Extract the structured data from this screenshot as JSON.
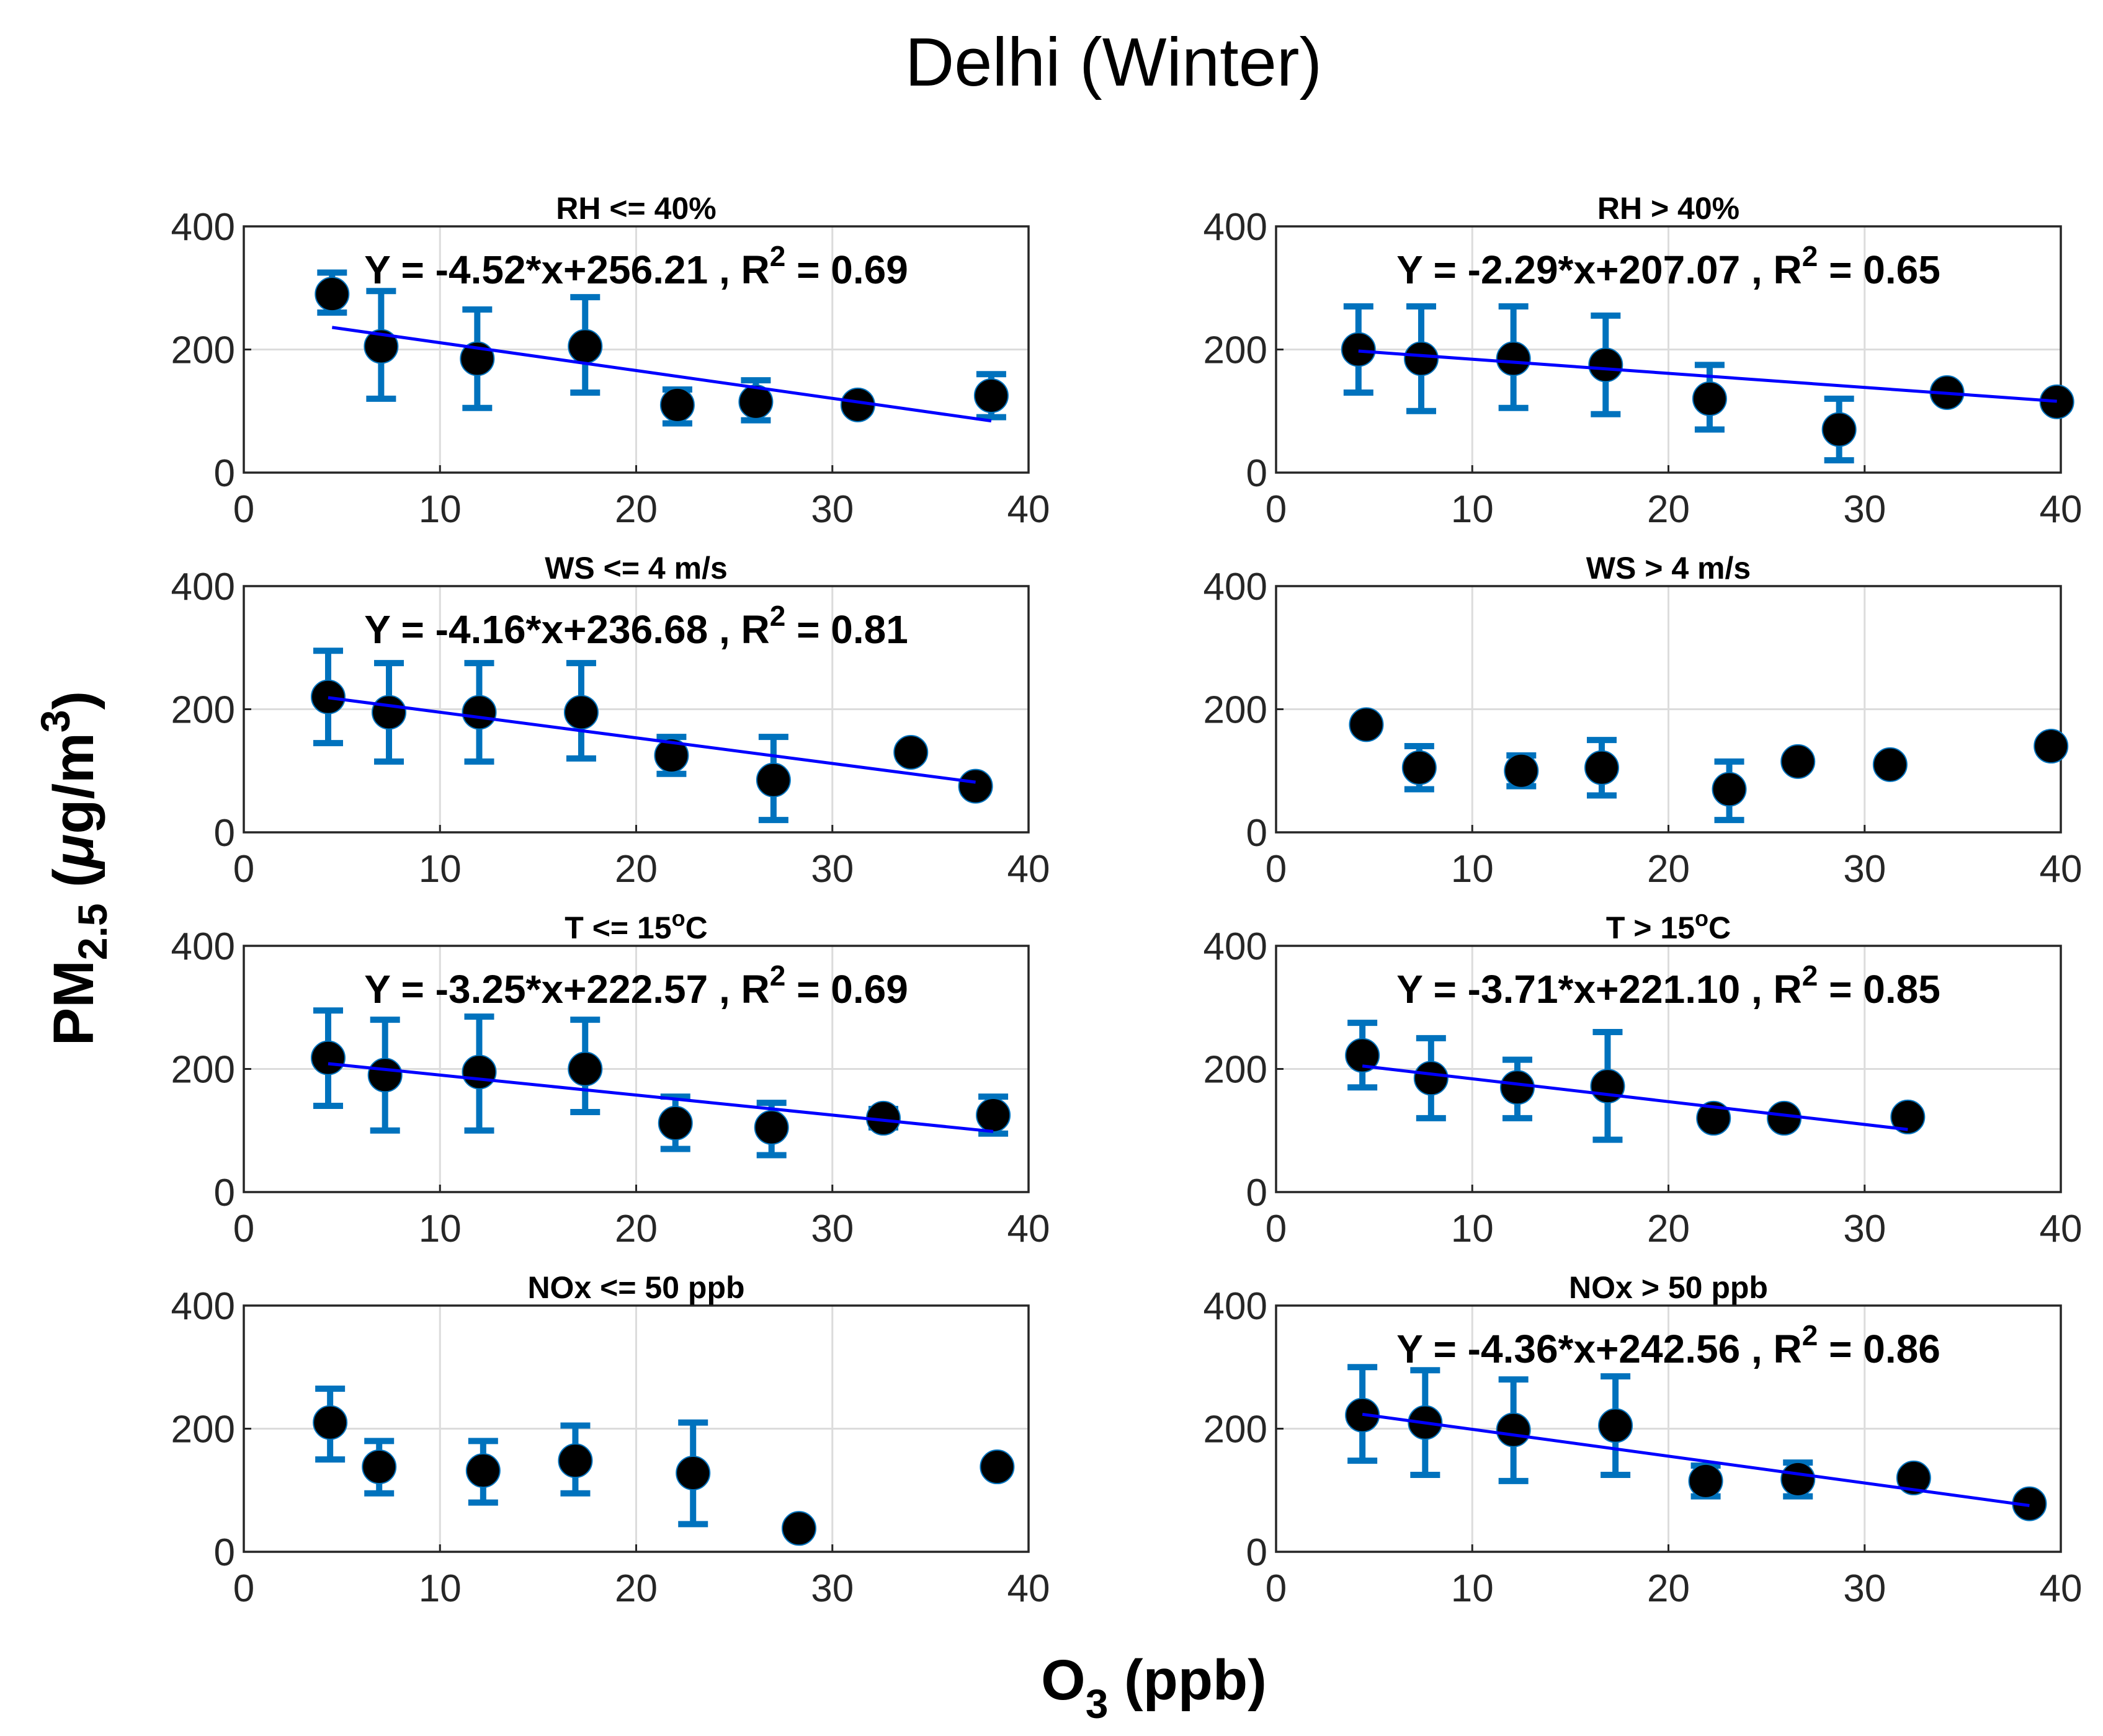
{
  "figure": {
    "title": "Delhi (Winter)",
    "ylabel": {
      "prefix": "PM",
      "sub": "2.5",
      "unit_open": " (",
      "mu": "μ",
      "unit_mid": "g/m",
      "sup": "3",
      "unit_close": ")"
    },
    "xlabel": {
      "prefix": "O",
      "sub": "3",
      "suffix": " (ppb)"
    }
  },
  "colors": {
    "marker": "#000000",
    "errorbar": "#0072BD",
    "fit": "#0000FF",
    "grid": "#dcdcdc",
    "axis": "#262626"
  },
  "chart_data": [
    {
      "type": "scatter",
      "title": "RH <= 40%",
      "xlim": [
        0,
        40
      ],
      "ylim": [
        0,
        400
      ],
      "xticks": [
        0,
        10,
        20,
        30,
        40
      ],
      "yticks": [
        0,
        200,
        400
      ],
      "points": [
        {
          "x": 4.5,
          "y": 290,
          "lo": 260,
          "hi": 325
        },
        {
          "x": 7.0,
          "y": 205,
          "lo": 120,
          "hi": 295
        },
        {
          "x": 11.9,
          "y": 185,
          "lo": 105,
          "hi": 265
        },
        {
          "x": 17.4,
          "y": 205,
          "lo": 130,
          "hi": 285
        },
        {
          "x": 22.1,
          "y": 110,
          "lo": 80,
          "hi": 135
        },
        {
          "x": 26.1,
          "y": 115,
          "lo": 85,
          "hi": 150
        },
        {
          "x": 31.3,
          "y": 110,
          "lo": 100,
          "hi": 120
        },
        {
          "x": 38.1,
          "y": 125,
          "lo": 90,
          "hi": 160
        }
      ],
      "equation": {
        "base": "Y = -4.52*x+256.21 , R",
        "sup": "2",
        "tail": " = 0.69"
      },
      "fit": {
        "slope": -4.52,
        "intercept": 256.21,
        "xrange": [
          4.5,
          38.1
        ]
      }
    },
    {
      "type": "scatter",
      "title": "RH > 40%",
      "xlim": [
        0,
        40
      ],
      "ylim": [
        0,
        400
      ],
      "xticks": [
        0,
        10,
        20,
        30,
        40
      ],
      "yticks": [
        0,
        200,
        400
      ],
      "points": [
        {
          "x": 4.2,
          "y": 200,
          "lo": 130,
          "hi": 270
        },
        {
          "x": 7.4,
          "y": 185,
          "lo": 100,
          "hi": 270
        },
        {
          "x": 12.1,
          "y": 185,
          "lo": 105,
          "hi": 270
        },
        {
          "x": 16.8,
          "y": 175,
          "lo": 95,
          "hi": 255
        },
        {
          "x": 22.1,
          "y": 120,
          "lo": 70,
          "hi": 175
        },
        {
          "x": 28.7,
          "y": 70,
          "lo": 20,
          "hi": 120
        },
        {
          "x": 34.2,
          "y": 130,
          "lo": 120,
          "hi": 140
        },
        {
          "x": 39.8,
          "y": 115,
          "lo": 105,
          "hi": 125
        }
      ],
      "equation": {
        "base": "Y = -2.29*x+207.07 , R",
        "sup": "2",
        "tail": " = 0.65"
      },
      "fit": {
        "slope": -2.29,
        "intercept": 207.07,
        "xrange": [
          4.2,
          39.8
        ]
      }
    },
    {
      "type": "scatter",
      "title": "WS <= 4 m/s",
      "xlim": [
        0,
        40
      ],
      "ylim": [
        0,
        400
      ],
      "xticks": [
        0,
        10,
        20,
        30,
        40
      ],
      "yticks": [
        0,
        200,
        400
      ],
      "points": [
        {
          "x": 4.3,
          "y": 220,
          "lo": 145,
          "hi": 295
        },
        {
          "x": 7.4,
          "y": 195,
          "lo": 115,
          "hi": 275
        },
        {
          "x": 12.0,
          "y": 195,
          "lo": 115,
          "hi": 275
        },
        {
          "x": 17.2,
          "y": 195,
          "lo": 120,
          "hi": 275
        },
        {
          "x": 21.8,
          "y": 125,
          "lo": 95,
          "hi": 155
        },
        {
          "x": 27.0,
          "y": 85,
          "lo": 20,
          "hi": 155
        },
        {
          "x": 34.0,
          "y": 130,
          "lo": 120,
          "hi": 140
        },
        {
          "x": 37.3,
          "y": 75,
          "lo": 65,
          "hi": 85
        }
      ],
      "equation": {
        "base": "Y = -4.16*x+236.68 , R",
        "sup": "2",
        "tail": " = 0.81"
      },
      "fit": {
        "slope": -4.16,
        "intercept": 236.68,
        "xrange": [
          4.3,
          37.3
        ]
      }
    },
    {
      "type": "scatter",
      "title": "WS > 4 m/s",
      "xlim": [
        0,
        40
      ],
      "ylim": [
        0,
        400
      ],
      "xticks": [
        0,
        10,
        20,
        30,
        40
      ],
      "yticks": [
        0,
        200,
        400
      ],
      "points": [
        {
          "x": 4.6,
          "y": 175,
          "lo": 165,
          "hi": 185
        },
        {
          "x": 7.3,
          "y": 105,
          "lo": 70,
          "hi": 140
        },
        {
          "x": 12.5,
          "y": 100,
          "lo": 75,
          "hi": 125
        },
        {
          "x": 16.6,
          "y": 105,
          "lo": 60,
          "hi": 150
        },
        {
          "x": 23.1,
          "y": 70,
          "lo": 20,
          "hi": 115
        },
        {
          "x": 26.6,
          "y": 115,
          "lo": 105,
          "hi": 125
        },
        {
          "x": 31.3,
          "y": 110,
          "lo": 100,
          "hi": 120
        },
        {
          "x": 39.5,
          "y": 140,
          "lo": 130,
          "hi": 150
        }
      ],
      "equation": null,
      "fit": null
    },
    {
      "type": "scatter",
      "title": "T <= 15",
      "title_sup": "o",
      "title_tail": "C",
      "xlim": [
        0,
        40
      ],
      "ylim": [
        0,
        400
      ],
      "xticks": [
        0,
        10,
        20,
        30,
        40
      ],
      "yticks": [
        0,
        200,
        400
      ],
      "points": [
        {
          "x": 4.3,
          "y": 218,
          "lo": 140,
          "hi": 295
        },
        {
          "x": 7.2,
          "y": 190,
          "lo": 100,
          "hi": 280
        },
        {
          "x": 12.0,
          "y": 195,
          "lo": 100,
          "hi": 285
        },
        {
          "x": 17.4,
          "y": 200,
          "lo": 130,
          "hi": 280
        },
        {
          "x": 22.0,
          "y": 112,
          "lo": 70,
          "hi": 155
        },
        {
          "x": 26.9,
          "y": 105,
          "lo": 60,
          "hi": 145
        },
        {
          "x": 32.6,
          "y": 120,
          "lo": 105,
          "hi": 135
        },
        {
          "x": 38.2,
          "y": 125,
          "lo": 95,
          "hi": 155
        }
      ],
      "equation": {
        "base": "Y = -3.25*x+222.57 , R",
        "sup": "2",
        "tail": " = 0.69"
      },
      "fit": {
        "slope": -3.25,
        "intercept": 222.57,
        "xrange": [
          4.3,
          38.2
        ]
      }
    },
    {
      "type": "scatter",
      "title": "T > 15",
      "title_sup": "o",
      "title_tail": "C",
      "xlim": [
        0,
        40
      ],
      "ylim": [
        0,
        400
      ],
      "xticks": [
        0,
        10,
        20,
        30,
        40
      ],
      "yticks": [
        0,
        200,
        400
      ],
      "points": [
        {
          "x": 4.4,
          "y": 222,
          "lo": 170,
          "hi": 275
        },
        {
          "x": 7.9,
          "y": 185,
          "lo": 120,
          "hi": 250
        },
        {
          "x": 12.3,
          "y": 170,
          "lo": 120,
          "hi": 215
        },
        {
          "x": 16.9,
          "y": 172,
          "lo": 85,
          "hi": 260
        },
        {
          "x": 22.3,
          "y": 120,
          "lo": 110,
          "hi": 130
        },
        {
          "x": 25.9,
          "y": 120,
          "lo": 110,
          "hi": 130
        },
        {
          "x": 32.2,
          "y": 122,
          "lo": 112,
          "hi": 132
        }
      ],
      "equation": {
        "base": "Y = -3.71*x+221.10 , R",
        "sup": "2",
        "tail": " = 0.85"
      },
      "fit": {
        "slope": -3.71,
        "intercept": 221.1,
        "xrange": [
          4.4,
          32.2
        ]
      }
    },
    {
      "type": "scatter",
      "title": "NOx <= 50 ppb",
      "xlim": [
        0,
        40
      ],
      "ylim": [
        0,
        400
      ],
      "xticks": [
        0,
        10,
        20,
        30,
        40
      ],
      "yticks": [
        0,
        200,
        400
      ],
      "points": [
        {
          "x": 4.4,
          "y": 210,
          "lo": 150,
          "hi": 265
        },
        {
          "x": 6.9,
          "y": 138,
          "lo": 95,
          "hi": 180
        },
        {
          "x": 12.2,
          "y": 132,
          "lo": 80,
          "hi": 180
        },
        {
          "x": 16.9,
          "y": 148,
          "lo": 95,
          "hi": 205
        },
        {
          "x": 22.9,
          "y": 128,
          "lo": 45,
          "hi": 210
        },
        {
          "x": 28.3,
          "y": 38,
          "lo": 28,
          "hi": 48
        },
        {
          "x": 38.4,
          "y": 138,
          "lo": 128,
          "hi": 148
        }
      ],
      "equation": null,
      "fit": null
    },
    {
      "type": "scatter",
      "title": "NOx > 50 ppb",
      "xlim": [
        0,
        40
      ],
      "ylim": [
        0,
        400
      ],
      "xticks": [
        0,
        10,
        20,
        30,
        40
      ],
      "yticks": [
        0,
        200,
        400
      ],
      "points": [
        {
          "x": 4.4,
          "y": 222,
          "lo": 148,
          "hi": 300
        },
        {
          "x": 7.6,
          "y": 210,
          "lo": 125,
          "hi": 295
        },
        {
          "x": 12.1,
          "y": 198,
          "lo": 115,
          "hi": 280
        },
        {
          "x": 17.3,
          "y": 205,
          "lo": 125,
          "hi": 285
        },
        {
          "x": 21.9,
          "y": 115,
          "lo": 90,
          "hi": 140
        },
        {
          "x": 26.6,
          "y": 118,
          "lo": 90,
          "hi": 145
        },
        {
          "x": 32.5,
          "y": 120,
          "lo": 110,
          "hi": 130
        },
        {
          "x": 38.4,
          "y": 78,
          "lo": 68,
          "hi": 88
        }
      ],
      "equation": {
        "base": "Y = -4.36*x+242.56 , R",
        "sup": "2",
        "tail": " = 0.86"
      },
      "fit": {
        "slope": -4.36,
        "intercept": 242.56,
        "xrange": [
          4.4,
          38.4
        ]
      }
    }
  ]
}
